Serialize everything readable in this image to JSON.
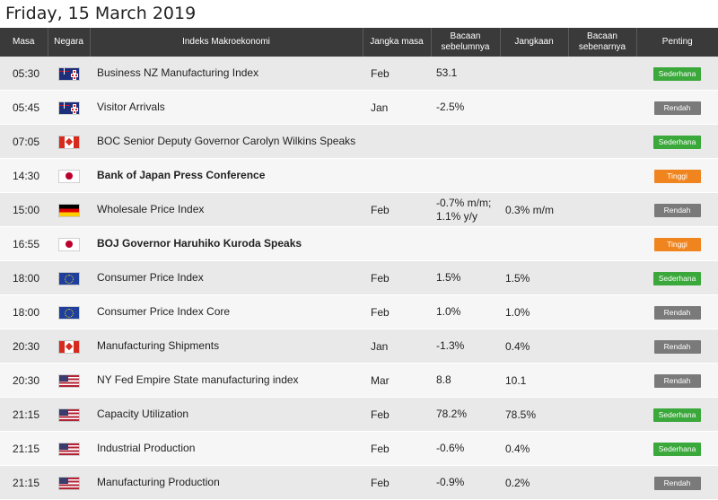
{
  "page": {
    "date_title": "Friday, 15 March 2019"
  },
  "headers": {
    "time": "Masa",
    "country": "Negara",
    "event": "Indeks Makroekonomi",
    "period": "Jangka masa",
    "previous": "Bacaan sebelumnya",
    "forecast": "Jangkaan",
    "actual": "Bacaan sebenarnya",
    "importance": "Penting"
  },
  "colors": {
    "high": "#f0851f",
    "medium": "#3aa83a",
    "low": "#7a7a7a",
    "header_bg": "#3a3a3a"
  },
  "rows": [
    {
      "time": "05:30",
      "flag": "nz-flag-icon",
      "event": "Business NZ Manufacturing Index",
      "bold": false,
      "period": "Feb",
      "previous": "53.1",
      "forecast": "",
      "actual": "",
      "importance": "Sederhana",
      "level": "green"
    },
    {
      "time": "05:45",
      "flag": "nz-flag-icon",
      "event": "Visitor Arrivals",
      "bold": false,
      "period": "Jan",
      "previous": "-2.5%",
      "forecast": "",
      "actual": "",
      "importance": "Rendah",
      "level": "gray"
    },
    {
      "time": "07:05",
      "flag": "ca-flag-icon",
      "event": "BOC Senior Deputy Governor Carolyn Wilkins Speaks",
      "bold": false,
      "period": "",
      "previous": "",
      "forecast": "",
      "actual": "",
      "importance": "Sederhana",
      "level": "green"
    },
    {
      "time": "14:30",
      "flag": "jp-flag-icon",
      "event": "Bank of Japan Press Conference",
      "bold": true,
      "period": "",
      "previous": "",
      "forecast": "",
      "actual": "",
      "importance": "Tinggi",
      "level": "orange"
    },
    {
      "time": "15:00",
      "flag": "de-flag-icon",
      "event": "Wholesale Price Index",
      "bold": false,
      "period": "Feb",
      "previous": "-0.7% m/m; 1.1% y/y",
      "forecast": "0.3% m/m",
      "actual": "",
      "importance": "Rendah",
      "level": "gray"
    },
    {
      "time": "16:55",
      "flag": "jp-flag-icon",
      "event": "BOJ Governor Haruhiko Kuroda Speaks",
      "bold": true,
      "period": "",
      "previous": "",
      "forecast": "",
      "actual": "",
      "importance": "Tinggi",
      "level": "orange"
    },
    {
      "time": "18:00",
      "flag": "eu-flag-icon",
      "event": "Consumer Price Index",
      "bold": false,
      "period": "Feb",
      "previous": "1.5%",
      "forecast": "1.5%",
      "actual": "",
      "importance": "Sederhana",
      "level": "green"
    },
    {
      "time": "18:00",
      "flag": "eu-flag-icon",
      "event": "Consumer Price Index Core",
      "bold": false,
      "period": "Feb",
      "previous": "1.0%",
      "forecast": "1.0%",
      "actual": "",
      "importance": "Rendah",
      "level": "gray"
    },
    {
      "time": "20:30",
      "flag": "ca-flag-icon",
      "event": "Manufacturing Shipments",
      "bold": false,
      "period": "Jan",
      "previous": "-1.3%",
      "forecast": "0.4%",
      "actual": "",
      "importance": "Rendah",
      "level": "gray"
    },
    {
      "time": "20:30",
      "flag": "us-flag-icon",
      "event": "NY Fed Empire State manufacturing index",
      "bold": false,
      "period": "Mar",
      "previous": "8.8",
      "forecast": "10.1",
      "actual": "",
      "importance": "Rendah",
      "level": "gray"
    },
    {
      "time": "21:15",
      "flag": "us-flag-icon",
      "event": "Capacity Utilization",
      "bold": false,
      "period": "Feb",
      "previous": "78.2%",
      "forecast": "78.5%",
      "actual": "",
      "importance": "Sederhana",
      "level": "green"
    },
    {
      "time": "21:15",
      "flag": "us-flag-icon",
      "event": "Industrial Production",
      "bold": false,
      "period": "Feb",
      "previous": "-0.6%",
      "forecast": "0.4%",
      "actual": "",
      "importance": "Sederhana",
      "level": "green"
    },
    {
      "time": "21:15",
      "flag": "us-flag-icon",
      "event": "Manufacturing Production",
      "bold": false,
      "period": "Feb",
      "previous": "-0.9%",
      "forecast": "0.2%",
      "actual": "",
      "importance": "Rendah",
      "level": "gray"
    }
  ]
}
